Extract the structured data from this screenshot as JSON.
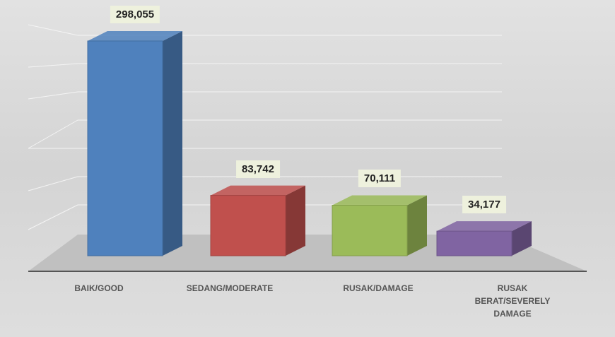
{
  "chart_data": {
    "type": "bar3d",
    "categories": [
      "BAIK/GOOD",
      "SEDANG/MODERATE",
      "RUSAK/DAMAGE",
      "RUSAK BERAT/SEVERELY DAMAGE"
    ],
    "values": [
      298055,
      83742,
      70111,
      34177
    ],
    "value_labels": [
      "298,055",
      "83,742",
      "70,111",
      "34,177"
    ],
    "colors": [
      "#4f81bd",
      "#c0504d",
      "#9bbb59",
      "#8064a2"
    ],
    "ylim": [
      0,
      300000
    ]
  }
}
